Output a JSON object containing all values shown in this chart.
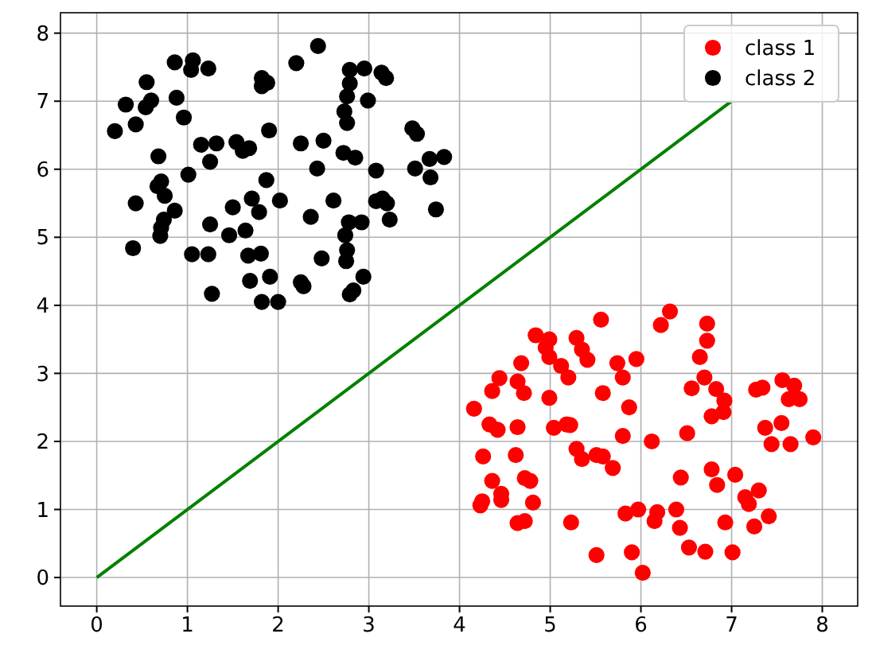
{
  "chart_data": {
    "type": "scatter",
    "xlim": [
      -0.4,
      8.39
    ],
    "ylim": [
      -0.42,
      8.3
    ],
    "xticks": [
      0,
      1,
      2,
      3,
      4,
      5,
      6,
      7,
      8
    ],
    "yticks": [
      0,
      1,
      2,
      3,
      4,
      5,
      6,
      7,
      8
    ],
    "grid": true,
    "legend": "top right",
    "marker": "circle",
    "series": [
      {
        "name": "class 1",
        "color": "#ff0000",
        "x": [
          6.32,
          6.22,
          6.73,
          6.73,
          6.65,
          5.56,
          4.84,
          4.99,
          4.95,
          4.99,
          5.29,
          5.35,
          5.41,
          5.12,
          5.2,
          4.68,
          4.64,
          4.44,
          4.36,
          4.71,
          4.16,
          4.99,
          5.74,
          5.8,
          5.95,
          5.58,
          5.87,
          6.7,
          6.56,
          6.83,
          6.92,
          6.91,
          6.78,
          7.27,
          7.34,
          7.56,
          7.69,
          7.63,
          7.75,
          7.55,
          7.37,
          7.44,
          7.65,
          7.9,
          4.33,
          4.42,
          4.64,
          5.04,
          5.18,
          5.22,
          5.8,
          6.12,
          6.51,
          4.26,
          4.62,
          5.29,
          5.35,
          5.51,
          5.58,
          5.69,
          4.36,
          4.72,
          4.78,
          4.46,
          4.46,
          4.25,
          4.23,
          4.81,
          6.44,
          6.78,
          7.04,
          6.84,
          7.3,
          7.15,
          7.19,
          7.41,
          7.25,
          6.93,
          4.64,
          4.72,
          5.23,
          5.83,
          5.97,
          6.18,
          6.15,
          6.39,
          6.43,
          6.53,
          6.71,
          7.01,
          5.51,
          5.9,
          6.02
        ],
        "values": [
          3.91,
          3.71,
          3.73,
          3.48,
          3.24,
          3.79,
          3.56,
          3.5,
          3.38,
          3.24,
          3.52,
          3.35,
          3.2,
          3.11,
          2.94,
          3.15,
          2.88,
          2.93,
          2.74,
          2.71,
          2.48,
          2.64,
          3.15,
          2.94,
          3.21,
          2.71,
          2.5,
          2.94,
          2.78,
          2.77,
          2.6,
          2.43,
          2.37,
          2.76,
          2.79,
          2.9,
          2.82,
          2.62,
          2.62,
          2.27,
          2.2,
          1.96,
          1.96,
          2.06,
          2.25,
          2.17,
          2.21,
          2.2,
          2.25,
          2.24,
          2.08,
          2.0,
          2.12,
          1.78,
          1.8,
          1.89,
          1.74,
          1.8,
          1.78,
          1.61,
          1.42,
          1.46,
          1.42,
          1.23,
          1.14,
          1.12,
          1.06,
          1.1,
          1.47,
          1.59,
          1.51,
          1.36,
          1.28,
          1.18,
          1.08,
          0.9,
          0.75,
          0.81,
          0.8,
          0.83,
          0.81,
          0.94,
          1.0,
          0.96,
          0.83,
          1.0,
          0.73,
          0.44,
          0.38,
          0.37,
          0.33,
          0.37,
          0.07
        ]
      },
      {
        "name": "class 2",
        "color": "#000000",
        "x": [
          2.44,
          2.2,
          0.86,
          1.06,
          1.04,
          1.23,
          0.55,
          1.82,
          1.88,
          1.82,
          2.79,
          2.95,
          3.14,
          3.19,
          2.79,
          2.76,
          2.73,
          2.76,
          2.99,
          0.88,
          0.32,
          0.6,
          0.54,
          0.96,
          0.43,
          0.2,
          1.9,
          3.48,
          3.53,
          1.15,
          1.32,
          1.54,
          1.61,
          1.68,
          2.25,
          2.5,
          0.68,
          1.25,
          2.72,
          2.85,
          1.01,
          2.43,
          3.08,
          3.51,
          3.67,
          3.83,
          3.68,
          1.87,
          0.71,
          0.67,
          0.75,
          0.43,
          1.71,
          2.02,
          1.5,
          1.79,
          2.61,
          3.08,
          3.15,
          3.2,
          3.74,
          0.86,
          0.74,
          0.71,
          2.36,
          3.23,
          1.25,
          2.78,
          2.92,
          1.64,
          1.46,
          0.7,
          2.74,
          0.4,
          1.05,
          1.23,
          1.67,
          1.81,
          2.48,
          2.76,
          2.75,
          1.91,
          1.69,
          2.94,
          2.25,
          2.28,
          1.27,
          2.83,
          2.79,
          1.82,
          2.0
        ],
        "values": [
          7.81,
          7.56,
          7.57,
          7.6,
          7.46,
          7.48,
          7.28,
          7.34,
          7.27,
          7.22,
          7.46,
          7.48,
          7.42,
          7.34,
          7.26,
          7.07,
          6.85,
          6.68,
          7.01,
          7.05,
          6.95,
          7.01,
          6.91,
          6.76,
          6.66,
          6.56,
          6.57,
          6.6,
          6.52,
          6.36,
          6.38,
          6.4,
          6.27,
          6.31,
          6.38,
          6.42,
          6.19,
          6.11,
          6.24,
          6.17,
          5.92,
          6.01,
          5.98,
          6.01,
          6.15,
          6.18,
          5.88,
          5.84,
          5.82,
          5.75,
          5.61,
          5.5,
          5.57,
          5.54,
          5.44,
          5.37,
          5.54,
          5.53,
          5.57,
          5.5,
          5.41,
          5.39,
          5.26,
          5.14,
          5.3,
          5.26,
          5.19,
          5.22,
          5.22,
          5.1,
          5.03,
          5.02,
          5.03,
          4.84,
          4.75,
          4.75,
          4.73,
          4.76,
          4.69,
          4.81,
          4.65,
          4.42,
          4.36,
          4.42,
          4.34,
          4.28,
          4.17,
          4.22,
          4.16,
          4.05,
          4.05
        ]
      },
      {
        "type": "line",
        "color": "#008000",
        "marker": "none",
        "x": [
          0,
          7
        ],
        "values": [
          0,
          7
        ]
      }
    ]
  }
}
